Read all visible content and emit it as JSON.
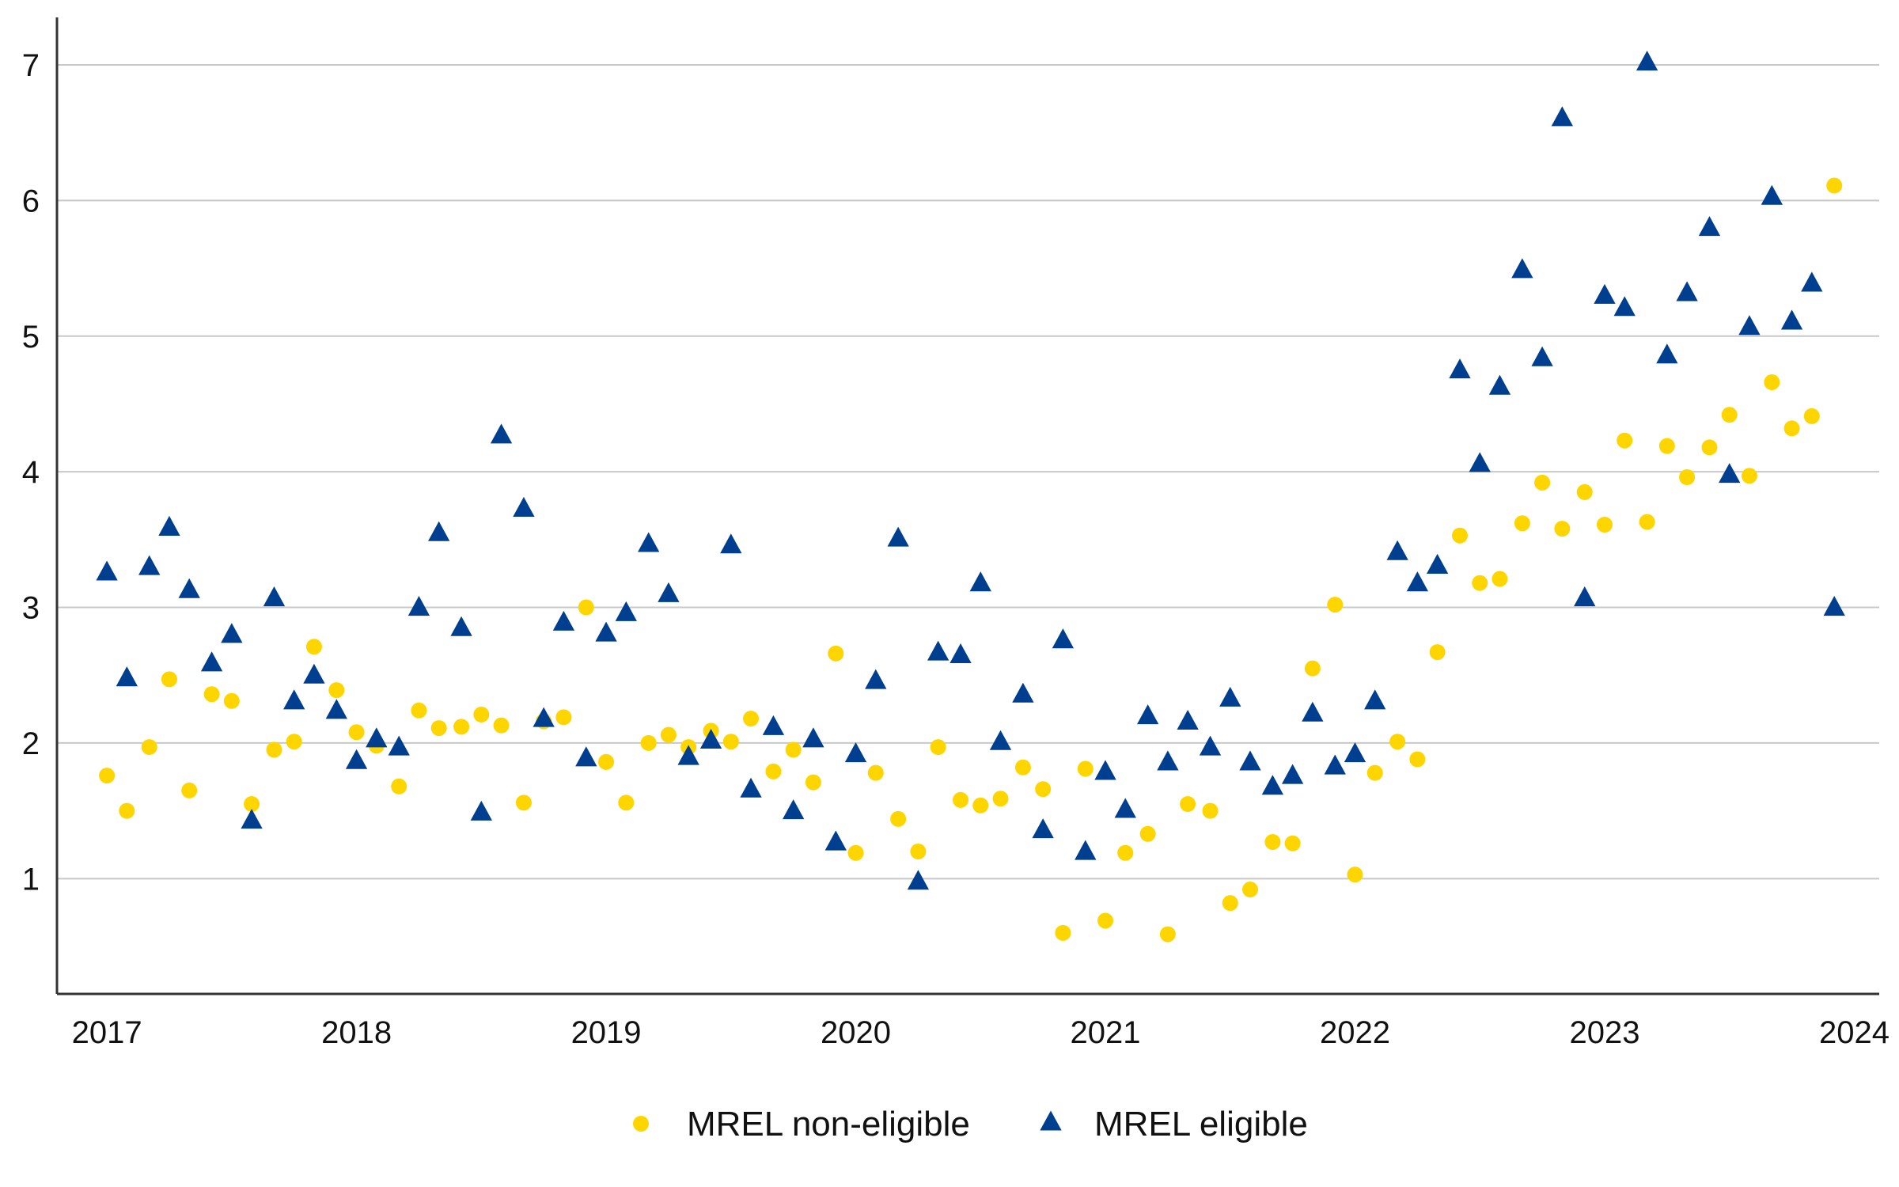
{
  "chart_data": {
    "type": "scatter",
    "title": "",
    "xlabel": "",
    "ylabel": "",
    "xlim": [
      2016.8,
      2024.1
    ],
    "ylim": [
      0.15,
      7.35
    ],
    "xticks": [
      2017,
      2018,
      2019,
      2020,
      2021,
      2022,
      2023,
      2024
    ],
    "xtick_labels": [
      "2017",
      "2018",
      "2019",
      "2020",
      "2021",
      "2022",
      "2023",
      "2024"
    ],
    "yticks": [
      1,
      2,
      3,
      4,
      5,
      6,
      7
    ],
    "ytick_labels": [
      "1",
      "2",
      "3",
      "4",
      "5",
      "6",
      "7"
    ],
    "grid": "horizontal",
    "legend_position": "bottom",
    "colors": {
      "non_eligible": "#FFD500",
      "eligible": "#003F8F",
      "grid": "#C8C8C8",
      "axis": "#333333"
    },
    "series": [
      {
        "name": "MREL non-eligible",
        "marker": "circle",
        "points": [
          [
            2017.0,
            1.76
          ],
          [
            2017.08,
            1.5
          ],
          [
            2017.17,
            1.97
          ],
          [
            2017.25,
            2.47
          ],
          [
            2017.33,
            1.65
          ],
          [
            2017.42,
            2.36
          ],
          [
            2017.5,
            2.31
          ],
          [
            2017.58,
            1.55
          ],
          [
            2017.67,
            1.95
          ],
          [
            2017.75,
            2.01
          ],
          [
            2017.83,
            2.71
          ],
          [
            2017.92,
            2.39
          ],
          [
            2018.0,
            2.08
          ],
          [
            2018.08,
            1.98
          ],
          [
            2018.17,
            1.68
          ],
          [
            2018.25,
            2.24
          ],
          [
            2018.33,
            2.11
          ],
          [
            2018.42,
            2.12
          ],
          [
            2018.5,
            2.21
          ],
          [
            2018.58,
            2.13
          ],
          [
            2018.67,
            1.56
          ],
          [
            2018.75,
            2.16
          ],
          [
            2018.83,
            2.19
          ],
          [
            2018.92,
            3.0
          ],
          [
            2019.0,
            1.86
          ],
          [
            2019.08,
            1.56
          ],
          [
            2019.17,
            2.0
          ],
          [
            2019.25,
            2.06
          ],
          [
            2019.33,
            1.97
          ],
          [
            2019.42,
            2.09
          ],
          [
            2019.5,
            2.01
          ],
          [
            2019.58,
            2.18
          ],
          [
            2019.67,
            1.79
          ],
          [
            2019.75,
            1.95
          ],
          [
            2019.83,
            1.71
          ],
          [
            2019.92,
            2.66
          ],
          [
            2020.0,
            1.19
          ],
          [
            2020.08,
            1.78
          ],
          [
            2020.17,
            1.44
          ],
          [
            2020.25,
            1.2
          ],
          [
            2020.33,
            1.97
          ],
          [
            2020.42,
            1.58
          ],
          [
            2020.5,
            1.54
          ],
          [
            2020.58,
            1.59
          ],
          [
            2020.67,
            1.82
          ],
          [
            2020.75,
            1.66
          ],
          [
            2020.83,
            0.6
          ],
          [
            2020.92,
            1.81
          ],
          [
            2021.0,
            0.69
          ],
          [
            2021.08,
            1.19
          ],
          [
            2021.17,
            1.33
          ],
          [
            2021.25,
            0.59
          ],
          [
            2021.33,
            1.55
          ],
          [
            2021.42,
            1.5
          ],
          [
            2021.5,
            0.82
          ],
          [
            2021.58,
            0.92
          ],
          [
            2021.67,
            1.27
          ],
          [
            2021.75,
            1.26
          ],
          [
            2021.83,
            2.55
          ],
          [
            2021.92,
            3.02
          ],
          [
            2022.0,
            1.03
          ],
          [
            2022.08,
            1.78
          ],
          [
            2022.17,
            2.01
          ],
          [
            2022.25,
            1.88
          ],
          [
            2022.33,
            2.67
          ],
          [
            2022.42,
            3.53
          ],
          [
            2022.5,
            3.18
          ],
          [
            2022.58,
            3.21
          ],
          [
            2022.67,
            3.62
          ],
          [
            2022.75,
            3.92
          ],
          [
            2022.83,
            3.58
          ],
          [
            2022.92,
            3.85
          ],
          [
            2023.0,
            3.61
          ],
          [
            2023.08,
            4.23
          ],
          [
            2023.17,
            3.63
          ],
          [
            2023.25,
            4.19
          ],
          [
            2023.33,
            3.96
          ],
          [
            2023.42,
            4.18
          ],
          [
            2023.5,
            4.42
          ],
          [
            2023.58,
            3.97
          ],
          [
            2023.67,
            4.66
          ],
          [
            2023.75,
            4.32
          ],
          [
            2023.83,
            4.41
          ],
          [
            2023.92,
            6.11
          ]
        ]
      },
      {
        "name": "MREL eligible",
        "marker": "triangle",
        "points": [
          [
            2017.0,
            3.26
          ],
          [
            2017.08,
            2.48
          ],
          [
            2017.17,
            3.3
          ],
          [
            2017.25,
            3.59
          ],
          [
            2017.33,
            3.13
          ],
          [
            2017.42,
            2.59
          ],
          [
            2017.5,
            2.8
          ],
          [
            2017.58,
            1.43
          ],
          [
            2017.67,
            3.07
          ],
          [
            2017.75,
            2.31
          ],
          [
            2017.83,
            2.5
          ],
          [
            2017.92,
            2.24
          ],
          [
            2018.0,
            1.87
          ],
          [
            2018.08,
            2.03
          ],
          [
            2018.17,
            1.97
          ],
          [
            2018.25,
            3.0
          ],
          [
            2018.33,
            3.55
          ],
          [
            2018.42,
            2.85
          ],
          [
            2018.5,
            1.49
          ],
          [
            2018.58,
            4.27
          ],
          [
            2018.67,
            3.73
          ],
          [
            2018.75,
            2.18
          ],
          [
            2018.83,
            2.89
          ],
          [
            2018.92,
            1.89
          ],
          [
            2019.0,
            2.81
          ],
          [
            2019.08,
            2.96
          ],
          [
            2019.17,
            3.47
          ],
          [
            2019.25,
            3.1
          ],
          [
            2019.33,
            1.9
          ],
          [
            2019.42,
            2.02
          ],
          [
            2019.5,
            3.46
          ],
          [
            2019.58,
            1.66
          ],
          [
            2019.67,
            2.12
          ],
          [
            2019.75,
            1.5
          ],
          [
            2019.83,
            2.03
          ],
          [
            2019.92,
            1.27
          ],
          [
            2020.0,
            1.92
          ],
          [
            2020.08,
            2.46
          ],
          [
            2020.17,
            3.51
          ],
          [
            2020.25,
            0.98
          ],
          [
            2020.33,
            2.67
          ],
          [
            2020.42,
            2.65
          ],
          [
            2020.5,
            3.18
          ],
          [
            2020.58,
            2.01
          ],
          [
            2020.67,
            2.36
          ],
          [
            2020.75,
            1.36
          ],
          [
            2020.83,
            2.76
          ],
          [
            2020.92,
            1.2
          ],
          [
            2021.0,
            1.79
          ],
          [
            2021.08,
            1.51
          ],
          [
            2021.17,
            2.2
          ],
          [
            2021.25,
            1.86
          ],
          [
            2021.33,
            2.16
          ],
          [
            2021.42,
            1.97
          ],
          [
            2021.5,
            2.33
          ],
          [
            2021.58,
            1.86
          ],
          [
            2021.67,
            1.68
          ],
          [
            2021.75,
            1.76
          ],
          [
            2021.83,
            2.22
          ],
          [
            2021.92,
            1.83
          ],
          [
            2022.0,
            1.92
          ],
          [
            2022.08,
            2.31
          ],
          [
            2022.17,
            3.41
          ],
          [
            2022.25,
            3.18
          ],
          [
            2022.33,
            3.31
          ],
          [
            2022.42,
            4.75
          ],
          [
            2022.5,
            4.06
          ],
          [
            2022.58,
            4.63
          ],
          [
            2022.67,
            5.49
          ],
          [
            2022.75,
            4.84
          ],
          [
            2022.83,
            6.61
          ],
          [
            2022.92,
            3.07
          ],
          [
            2023.0,
            5.3
          ],
          [
            2023.08,
            5.21
          ],
          [
            2023.17,
            7.02
          ],
          [
            2023.25,
            4.86
          ],
          [
            2023.33,
            5.32
          ],
          [
            2023.42,
            5.8
          ],
          [
            2023.5,
            3.98
          ],
          [
            2023.58,
            5.07
          ],
          [
            2023.67,
            6.03
          ],
          [
            2023.75,
            5.11
          ],
          [
            2023.83,
            5.39
          ],
          [
            2023.92,
            3.0
          ]
        ]
      }
    ]
  }
}
